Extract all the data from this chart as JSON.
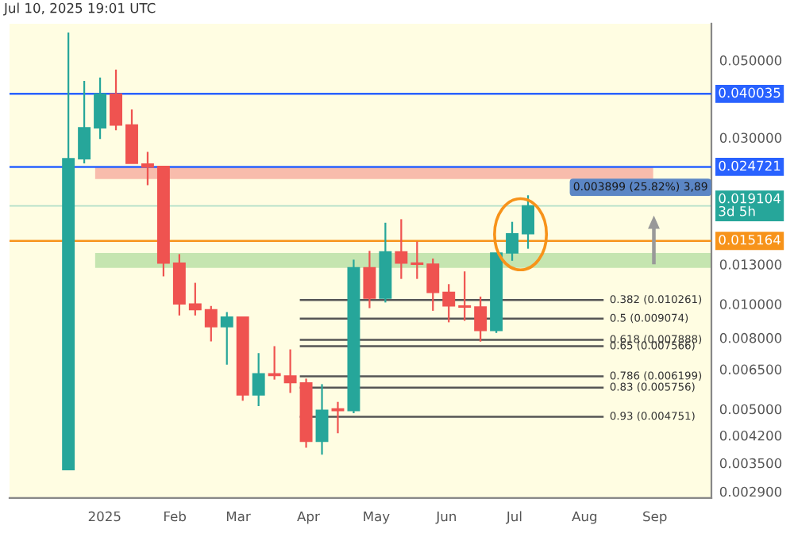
{
  "chart_data": {
    "type": "candlestick",
    "annotations": [
      "Jul 10, 2025 19:01 UTC",
      "0.003899 (25.82%) 3,89"
    ],
    "x": [
      "2024-12-16",
      "2024-12-23",
      "2024-12-30",
      "2025-01-06",
      "2025-01-13",
      "2025-01-20",
      "2025-01-27",
      "2025-02-03",
      "2025-02-10",
      "2025-02-17",
      "2025-02-24",
      "2025-03-03",
      "2025-03-10",
      "2025-03-17",
      "2025-03-24",
      "2025-03-31",
      "2025-04-07",
      "2025-04-14",
      "2025-04-21",
      "2025-04-28",
      "2025-05-05",
      "2025-05-12",
      "2025-05-19",
      "2025-05-26",
      "2025-06-02",
      "2025-06-09",
      "2025-06-16",
      "2025-06-23",
      "2025-06-30",
      "2025-07-07"
    ],
    "ohlc": [
      [
        0.00335,
        0.06,
        0.00335,
        0.0261
      ],
      [
        0.0261,
        0.0436,
        0.0253,
        0.032
      ],
      [
        0.032,
        0.0446,
        0.0297,
        0.04
      ],
      [
        0.04,
        0.047,
        0.0315,
        0.0326
      ],
      [
        0.0326,
        0.0361,
        0.0253,
        0.0253
      ],
      [
        0.0252,
        0.0273,
        0.0219,
        0.0247
      ],
      [
        0.0248,
        0.0248,
        0.012,
        0.0131
      ],
      [
        0.0131,
        0.0139,
        0.00927,
        0.01
      ],
      [
        0.01,
        0.0115,
        0.00927,
        0.00963
      ],
      [
        0.00963,
        0.00987,
        0.00781,
        0.00861
      ],
      [
        0.00861,
        0.00948,
        0.0067,
        0.00917
      ],
      [
        0.00917,
        0.00917,
        0.00528,
        0.00549
      ],
      [
        0.00549,
        0.00723,
        0.0051,
        0.00631
      ],
      [
        0.00631,
        0.00757,
        0.00607,
        0.00624
      ],
      [
        0.00622,
        0.00741,
        0.00556,
        0.00595
      ],
      [
        0.00594,
        0.00611,
        0.00387,
        0.00404
      ],
      [
        0.00404,
        0.00589,
        0.0037,
        0.00496
      ],
      [
        0.005,
        0.00524,
        0.00426,
        0.00495
      ],
      [
        0.00495,
        0.0134,
        0.00486,
        0.0127
      ],
      [
        0.0127,
        0.0142,
        0.00973,
        0.0104
      ],
      [
        0.0104,
        0.0171,
        0.0101,
        0.0141
      ],
      [
        0.0141,
        0.0175,
        0.0118,
        0.0131
      ],
      [
        0.0131,
        0.0151,
        0.0118,
        0.013
      ],
      [
        0.013,
        0.0135,
        0.00956,
        0.0108
      ],
      [
        0.0108,
        0.0114,
        0.00886,
        0.00987
      ],
      [
        0.00987,
        0.0124,
        0.00895,
        0.0098
      ],
      [
        0.0098,
        0.0105,
        0.0078,
        0.0084
      ],
      [
        0.0084,
        0.014,
        0.00826,
        0.014
      ],
      [
        0.014,
        0.0172,
        0.0133,
        0.0159
      ],
      [
        0.0159,
        0.0205,
        0.0144,
        0.0191
      ]
    ],
    "colors": [
      "#26a69a",
      "#26a69a",
      "#26a69a",
      "#ef5350",
      "#ef5350",
      "#ef5350",
      "#ef5350",
      "#ef5350",
      "#ef5350",
      "#ef5350",
      "#26a69a",
      "#ef5350",
      "#26a69a",
      "#ef5350",
      "#ef5350",
      "#ef5350",
      "#26a69a",
      "#ef5350",
      "#26a69a",
      "#ef5350",
      "#26a69a",
      "#ef5350",
      "#ef5350",
      "#ef5350",
      "#ef5350",
      "#ef5350",
      "#ef5350",
      "#26a69a",
      "#26a69a",
      "#26a69a"
    ],
    "log": true,
    "xlim": [
      "2024-11-20",
      "2025-09-26"
    ],
    "xticks": [
      {
        "value": "2025-01-01",
        "label": "2025"
      },
      {
        "value": "2025-02-01",
        "label": "Feb"
      },
      {
        "value": "2025-03-01",
        "label": "Mar"
      },
      {
        "value": "2025-04-01",
        "label": "Apr"
      },
      {
        "value": "2025-05-01",
        "label": "May"
      },
      {
        "value": "2025-06-01",
        "label": "Jun"
      },
      {
        "value": "2025-07-01",
        "label": "Jul"
      },
      {
        "value": "2025-08-01",
        "label": "Aug"
      },
      {
        "value": "2025-09-01",
        "label": "Sep"
      }
    ],
    "ylim": [
      0.00278,
      0.0636
    ],
    "yticks": [
      {
        "value": 0.05,
        "label": "0.050000"
      },
      {
        "value": 0.03,
        "label": "0.030000"
      },
      {
        "value": 0.013,
        "label": "0.013000"
      },
      {
        "value": 0.01,
        "label": "0.010000"
      },
      {
        "value": 0.008,
        "label": "0.008000"
      },
      {
        "value": 0.0065,
        "label": "0.006500"
      },
      {
        "value": 0.005,
        "label": "0.005000"
      },
      {
        "value": 0.0042,
        "label": "0.004200"
      },
      {
        "value": 0.0035,
        "label": "0.003500"
      },
      {
        "value": 0.0029,
        "label": "0.002900"
      }
    ],
    "ref_lines": [
      {
        "axis": "y",
        "value": 0.040035,
        "label": "0.040035",
        "color": "#2962ff"
      },
      {
        "axis": "y",
        "value": 0.024721,
        "label": "0.024721",
        "color": "#2962ff"
      },
      {
        "axis": "y",
        "value": 0.015164,
        "label": "0.015164",
        "color": "#f7931a"
      },
      {
        "axis": "y",
        "value": 0.019104,
        "label": "0.019104\n3d 5h",
        "color": "#26a69a"
      },
      {
        "axis": "y",
        "value": 0.010261,
        "label": "0.382 (0.010261)",
        "color": "#555555"
      },
      {
        "axis": "y",
        "value": 0.009074,
        "label": "0.5 (0.009074)",
        "color": "#555555"
      },
      {
        "axis": "y",
        "value": 0.007888,
        "label": "0.618 (0.007888)",
        "color": "#555555"
      },
      {
        "axis": "y",
        "value": 0.007566,
        "label": "0.65 (0.007566)",
        "color": "#555555"
      },
      {
        "axis": "y",
        "value": 0.006199,
        "label": "0.786 (0.006199)",
        "color": "#555555"
      },
      {
        "axis": "y",
        "value": 0.005756,
        "label": "0.83 (0.005756)",
        "color": "#555555"
      },
      {
        "axis": "y",
        "value": 0.004751,
        "label": "0.93 (0.004751)",
        "color": "#555555"
      }
    ],
    "bands": [
      {
        "axis": "y",
        "from": 0.0228,
        "to": 0.0247,
        "color": "#f8bcac"
      },
      {
        "axis": "y",
        "from": 0.0127,
        "to": 0.014,
        "color": "#c5e5b0"
      }
    ]
  }
}
